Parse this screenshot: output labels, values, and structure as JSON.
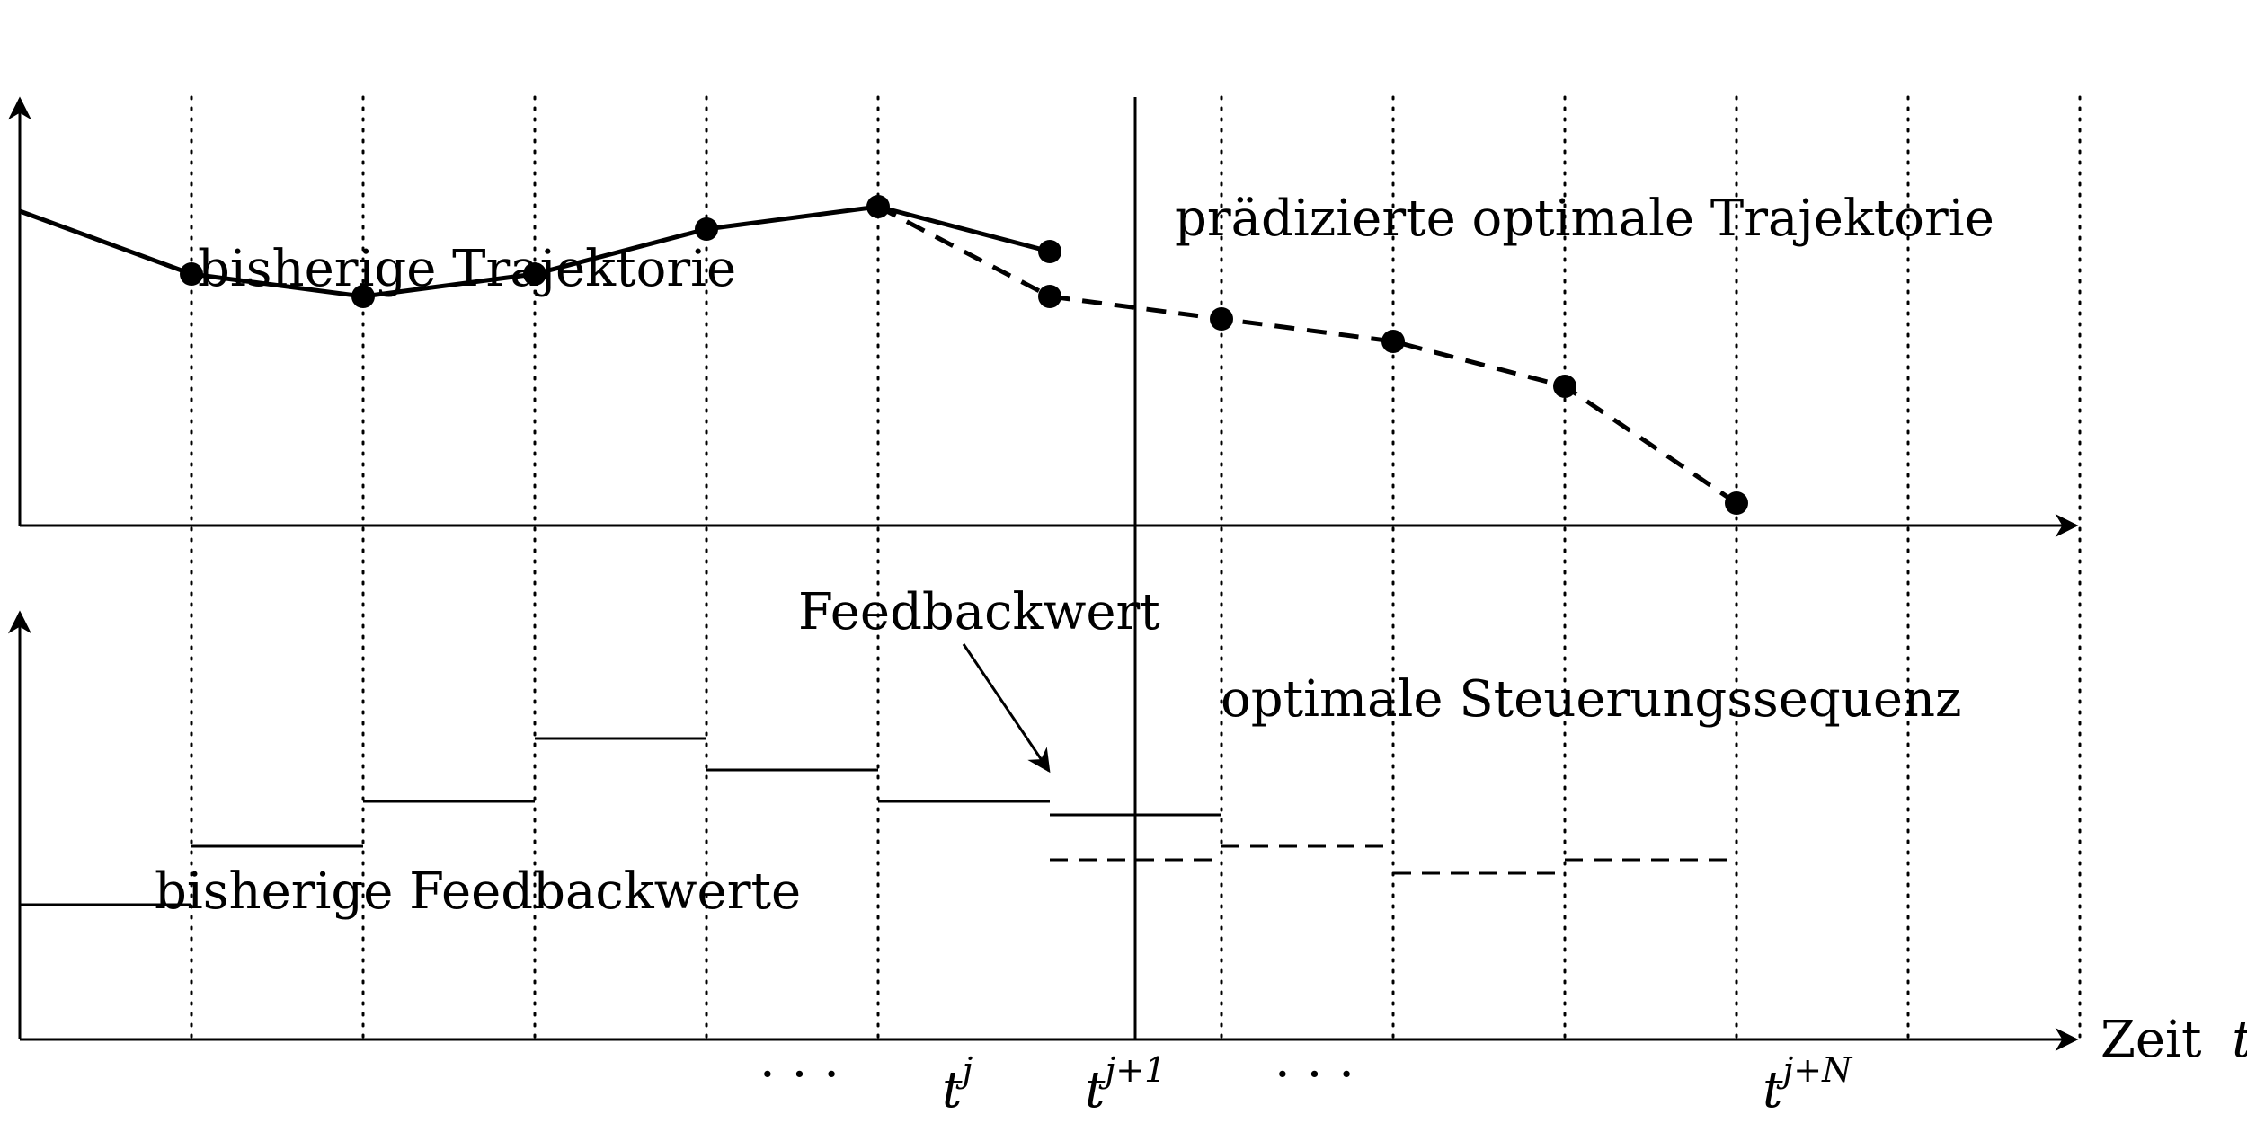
{
  "labels": {
    "past_trajectory": "bisherige Trajektorie",
    "predicted_trajectory": "prädizierte optimale Trajektorie",
    "feedback_value": "Feedbackwert",
    "optimal_control_sequence": "optimale Steuerungssequenz",
    "past_feedback_values": "bisherige Feedbackwerte",
    "time_axis_word": "Zeit",
    "time_axis_var": "t"
  },
  "tick_labels": {
    "dots_left": "· · ·",
    "tj_base": "t",
    "tj_sup": "j",
    "tj1_base": "t",
    "tj1_sup": "j+1",
    "dots_right": "· · ·",
    "tjN_base": "t",
    "tjN_sup": "j+N"
  },
  "diagram": {
    "time_steps": 12,
    "current_step": 6,
    "horizon_end_step": 10,
    "past_trajectory_points": [
      {
        "t": 0,
        "y": 0.7
      },
      {
        "t": 1,
        "y": 0.56
      },
      {
        "t": 2,
        "y": 0.51
      },
      {
        "t": 3,
        "y": 0.56
      },
      {
        "t": 4,
        "y": 0.66
      },
      {
        "t": 5,
        "y": 0.71
      },
      {
        "t": 6,
        "y": 0.61
      }
    ],
    "predicted_trajectory_points": [
      {
        "t": 5,
        "y": 0.71
      },
      {
        "t": 6,
        "y": 0.51
      },
      {
        "t": 7,
        "y": 0.46
      },
      {
        "t": 8,
        "y": 0.41
      },
      {
        "t": 9,
        "y": 0.31
      },
      {
        "t": 10,
        "y": 0.05
      }
    ],
    "past_feedback_steps": [
      {
        "t": 0,
        "u": 0.3
      },
      {
        "t": 1,
        "u": 0.43
      },
      {
        "t": 2,
        "u": 0.53
      },
      {
        "t": 3,
        "u": 0.67
      },
      {
        "t": 4,
        "u": 0.6
      },
      {
        "t": 5,
        "u": 0.53
      },
      {
        "t": 6,
        "u": 0.5
      }
    ],
    "optimal_control_steps": [
      {
        "t": 6,
        "u": 0.4
      },
      {
        "t": 7,
        "u": 0.43
      },
      {
        "t": 8,
        "u": 0.37
      },
      {
        "t": 9,
        "u": 0.4
      }
    ]
  }
}
